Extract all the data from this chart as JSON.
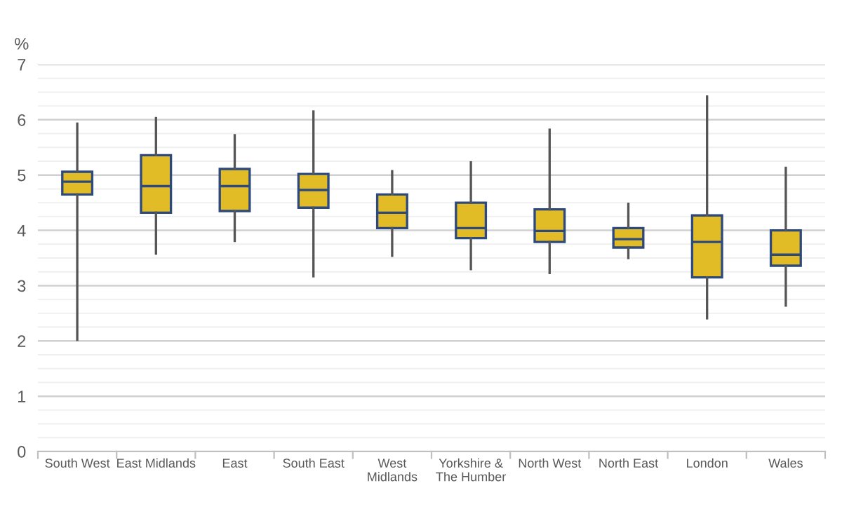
{
  "chart_data": {
    "type": "box",
    "ylabel": "%",
    "categories": [
      "South West",
      "East Midlands",
      "East",
      "South East",
      "West\nMidlands",
      "Yorkshire &\nThe Humber",
      "North West",
      "North East",
      "London",
      "Wales"
    ],
    "boxes": [
      {
        "low": 2.02,
        "q1": 4.65,
        "median": 4.88,
        "q3": 5.06,
        "high": 5.93
      },
      {
        "low": 3.58,
        "q1": 4.32,
        "median": 4.8,
        "q3": 5.36,
        "high": 6.03
      },
      {
        "low": 3.81,
        "q1": 4.35,
        "median": 4.8,
        "q3": 5.11,
        "high": 5.72
      },
      {
        "low": 3.17,
        "q1": 4.41,
        "median": 4.73,
        "q3": 5.02,
        "high": 6.15
      },
      {
        "low": 3.54,
        "q1": 4.04,
        "median": 4.32,
        "q3": 4.65,
        "high": 5.07
      },
      {
        "low": 3.3,
        "q1": 3.86,
        "median": 4.04,
        "q3": 4.5,
        "high": 5.23
      },
      {
        "low": 3.23,
        "q1": 3.79,
        "median": 3.99,
        "q3": 4.38,
        "high": 5.82
      },
      {
        "low": 3.5,
        "q1": 3.69,
        "median": 3.84,
        "q3": 4.04,
        "high": 4.48
      },
      {
        "low": 2.41,
        "q1": 3.15,
        "median": 3.79,
        "q3": 4.27,
        "high": 6.42
      },
      {
        "low": 2.64,
        "q1": 3.36,
        "median": 3.56,
        "q3": 4.0,
        "high": 5.13
      }
    ],
    "color": "#e2bc27",
    "ylim": [
      0,
      7
    ],
    "yticks": [
      0,
      {
        "value": 0.25,
        "label": null
      },
      {
        "value": 0.5,
        "label": null
      },
      {
        "value": 0.75,
        "label": null
      },
      1,
      {
        "value": 1.25,
        "label": null
      },
      {
        "value": 1.5,
        "label": null
      },
      {
        "value": 1.75,
        "label": null
      },
      2,
      {
        "value": 2.25,
        "label": null
      },
      {
        "value": 2.5,
        "label": null
      },
      {
        "value": 2.75,
        "label": null
      },
      3,
      {
        "value": 3.25,
        "label": null
      },
      {
        "value": 3.5,
        "label": null
      },
      {
        "value": 3.75,
        "label": null
      },
      4,
      {
        "value": 4.25,
        "label": null
      },
      {
        "value": 4.5,
        "label": null
      },
      {
        "value": 4.75,
        "label": null
      },
      5,
      {
        "value": 5.25,
        "label": null
      },
      {
        "value": 5.5,
        "label": null
      },
      {
        "value": 5.75,
        "label": null
      },
      6,
      {
        "value": 6.25,
        "label": null
      },
      {
        "value": 6.5,
        "label": null
      },
      {
        "value": 6.75,
        "label": null
      },
      7
    ],
    "grid": "y",
    "legend": false
  }
}
